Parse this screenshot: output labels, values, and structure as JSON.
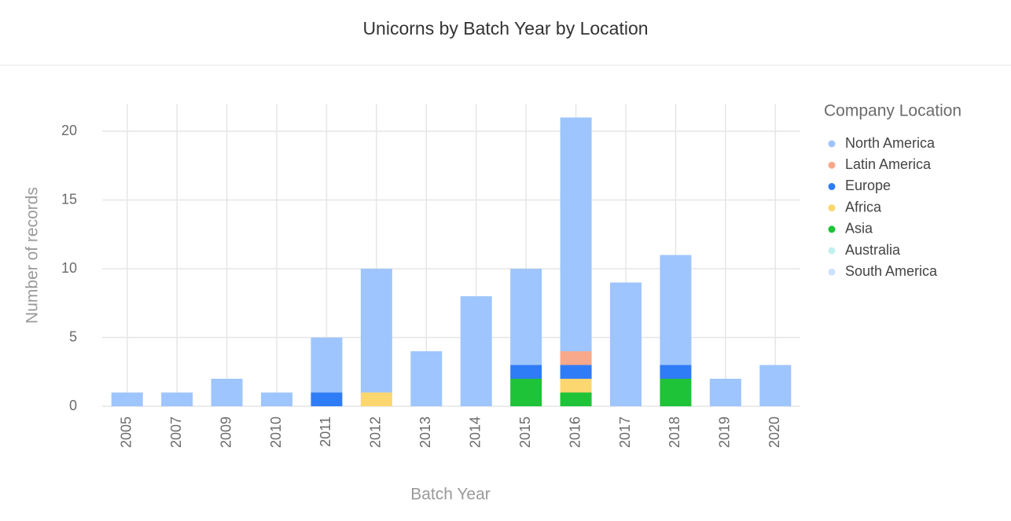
{
  "chart_data": {
    "type": "stacked-bar",
    "title": "Unicorns by Batch Year by Location",
    "x_label": "Batch Year",
    "y_label": "Number of records",
    "legend_title": "Company Location",
    "categories": [
      "2005",
      "2007",
      "2009",
      "2010",
      "2011",
      "2012",
      "2013",
      "2014",
      "2015",
      "2016",
      "2017",
      "2018",
      "2019",
      "2020"
    ],
    "series": [
      {
        "name": "North America",
        "color": "#9ec5fe",
        "values": [
          1,
          1,
          2,
          1,
          4,
          9,
          4,
          8,
          7,
          17,
          9,
          8,
          2,
          3
        ]
      },
      {
        "name": "Latin America",
        "color": "#f9a98b",
        "values": [
          0,
          0,
          0,
          0,
          0,
          0,
          0,
          0,
          0,
          1,
          0,
          0,
          0,
          0
        ]
      },
      {
        "name": "Europe",
        "color": "#2f7df6",
        "values": [
          0,
          0,
          0,
          0,
          1,
          0,
          0,
          0,
          1,
          1,
          0,
          1,
          0,
          0
        ]
      },
      {
        "name": "Africa",
        "color": "#fcd66f",
        "values": [
          0,
          0,
          0,
          0,
          0,
          1,
          0,
          0,
          0,
          1,
          0,
          0,
          0,
          0
        ]
      },
      {
        "name": "Asia",
        "color": "#1ec337",
        "values": [
          0,
          0,
          0,
          0,
          0,
          0,
          0,
          0,
          2,
          1,
          0,
          2,
          0,
          0
        ]
      },
      {
        "name": "Australia",
        "color": "#c2f0ec",
        "values": [
          0,
          0,
          0,
          0,
          0,
          0,
          0,
          0,
          0,
          0,
          0,
          0,
          0,
          0
        ]
      },
      {
        "name": "South America",
        "color": "#cfe1fd",
        "values": [
          0,
          0,
          0,
          0,
          0,
          0,
          0,
          0,
          0,
          0,
          0,
          0,
          0,
          0
        ]
      }
    ],
    "ylim": [
      0,
      22
    ],
    "yticks": [
      0,
      5,
      10,
      15,
      20
    ],
    "grid": true
  }
}
